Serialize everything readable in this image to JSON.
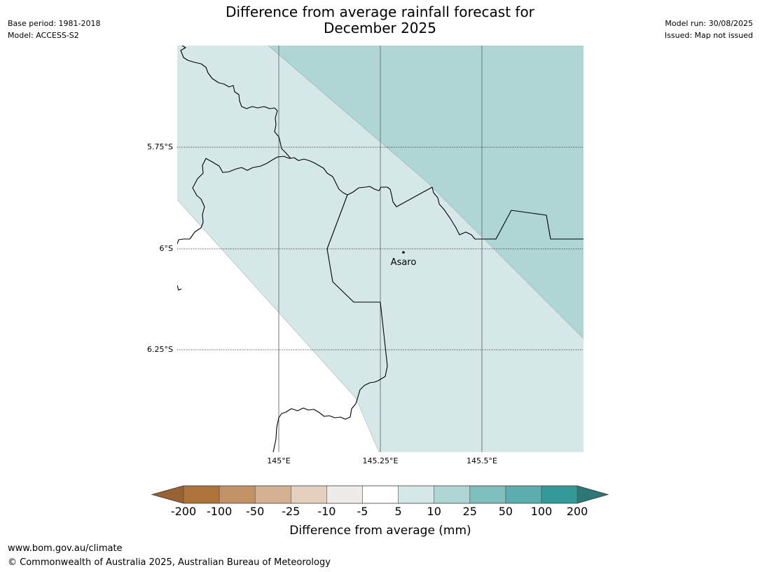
{
  "header": {
    "title_line1": "Difference from average rainfall forecast for",
    "title_line2": "December 2025",
    "base_period": "Base period: 1981-2018",
    "model": "Model: ACCESS-S2",
    "model_run": "Model run: 30/08/2025",
    "issued": "Issued: Map not issued"
  },
  "map": {
    "lat_labels": [
      "5.75°S",
      "6°S",
      "6.25°S"
    ],
    "lon_labels": [
      "145°E",
      "145.25°E",
      "145.5°E"
    ],
    "place": "Asaro",
    "colors": {
      "band_5_10": "#d5e8e7",
      "band_10_25": "#afd5d5",
      "border": "#000000",
      "meridian": "#6e7c7a"
    }
  },
  "legend": {
    "title": "Difference from average (mm)",
    "tick_labels": [
      "-200",
      "-100",
      "-50",
      "-25",
      "-10",
      "-5",
      "5",
      "10",
      "25",
      "50",
      "100",
      "200"
    ],
    "colors": [
      "#9a6232",
      "#ad733a",
      "#c29267",
      "#d4b192",
      "#e5d0bd",
      "#efebe8",
      "#ffffff",
      "#d5e8e7",
      "#afd5d5",
      "#80bfbd",
      "#5aadac",
      "#339a98",
      "#2b7876"
    ]
  },
  "footer": {
    "url": "www.bom.gov.au/climate",
    "copyright": "© Commonwealth of Australia 2025, Australian Bureau of Meteorology"
  }
}
